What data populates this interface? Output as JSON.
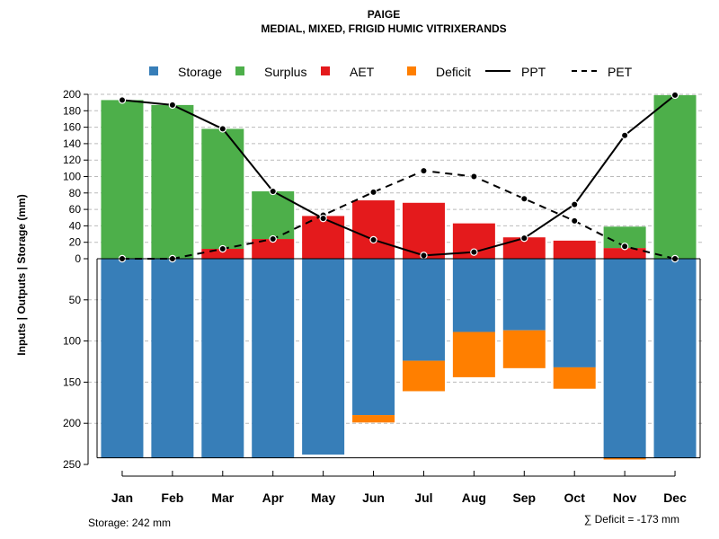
{
  "chart_data": {
    "type": "bar",
    "title": "PAIGE",
    "subtitle": "MEDIAL, MIXED, FRIGID HUMIC VITRIXERANDS",
    "ylabel": "Inputs | Outputs | Storage    (mm)",
    "categories": [
      "Jan",
      "Feb",
      "Mar",
      "Apr",
      "May",
      "Jun",
      "Jul",
      "Aug",
      "Sep",
      "Oct",
      "Nov",
      "Dec"
    ],
    "ylim_upper": [
      0,
      200
    ],
    "yticks_upper": [
      0,
      20,
      40,
      60,
      80,
      100,
      120,
      140,
      160,
      180,
      200
    ],
    "ylim_lower": [
      0,
      250
    ],
    "yticks_lower": [
      50,
      100,
      150,
      200,
      250
    ],
    "storage_capacity": 242,
    "legend": {
      "storage": "Storage",
      "surplus": "Surplus",
      "aet": "AET",
      "deficit": "Deficit",
      "ppt": "PPT",
      "pet": "PET"
    },
    "colors": {
      "storage": "#377EB8",
      "surplus": "#4DAF4A",
      "aet": "#E41A1C",
      "deficit": "#FF7F00",
      "line": "#000000"
    },
    "series": [
      {
        "name": "AET",
        "values": [
          0,
          0,
          12,
          24,
          52,
          71,
          68,
          43,
          26,
          22,
          13,
          0
        ]
      },
      {
        "name": "Surplus",
        "values": [
          193,
          187,
          146,
          58,
          0,
          0,
          0,
          0,
          0,
          0,
          26,
          199
        ]
      },
      {
        "name": "Storage",
        "values": [
          242,
          242,
          242,
          242,
          238,
          190,
          124,
          89,
          87,
          132,
          242,
          242
        ]
      },
      {
        "name": "Deficit",
        "values": [
          0,
          0,
          0,
          0,
          0,
          9,
          37,
          55,
          46,
          26,
          2,
          0
        ]
      },
      {
        "name": "PPT",
        "values": [
          193,
          187,
          158,
          82,
          49,
          23,
          4,
          8,
          25,
          66,
          150,
          199
        ]
      },
      {
        "name": "PET",
        "values": [
          0,
          0,
          12,
          24,
          53,
          81,
          107,
          100,
          73,
          46,
          15,
          0
        ]
      }
    ],
    "footer_storage": "Storage: 242 mm",
    "footer_deficit": "∑ Deficit = -173 mm"
  }
}
